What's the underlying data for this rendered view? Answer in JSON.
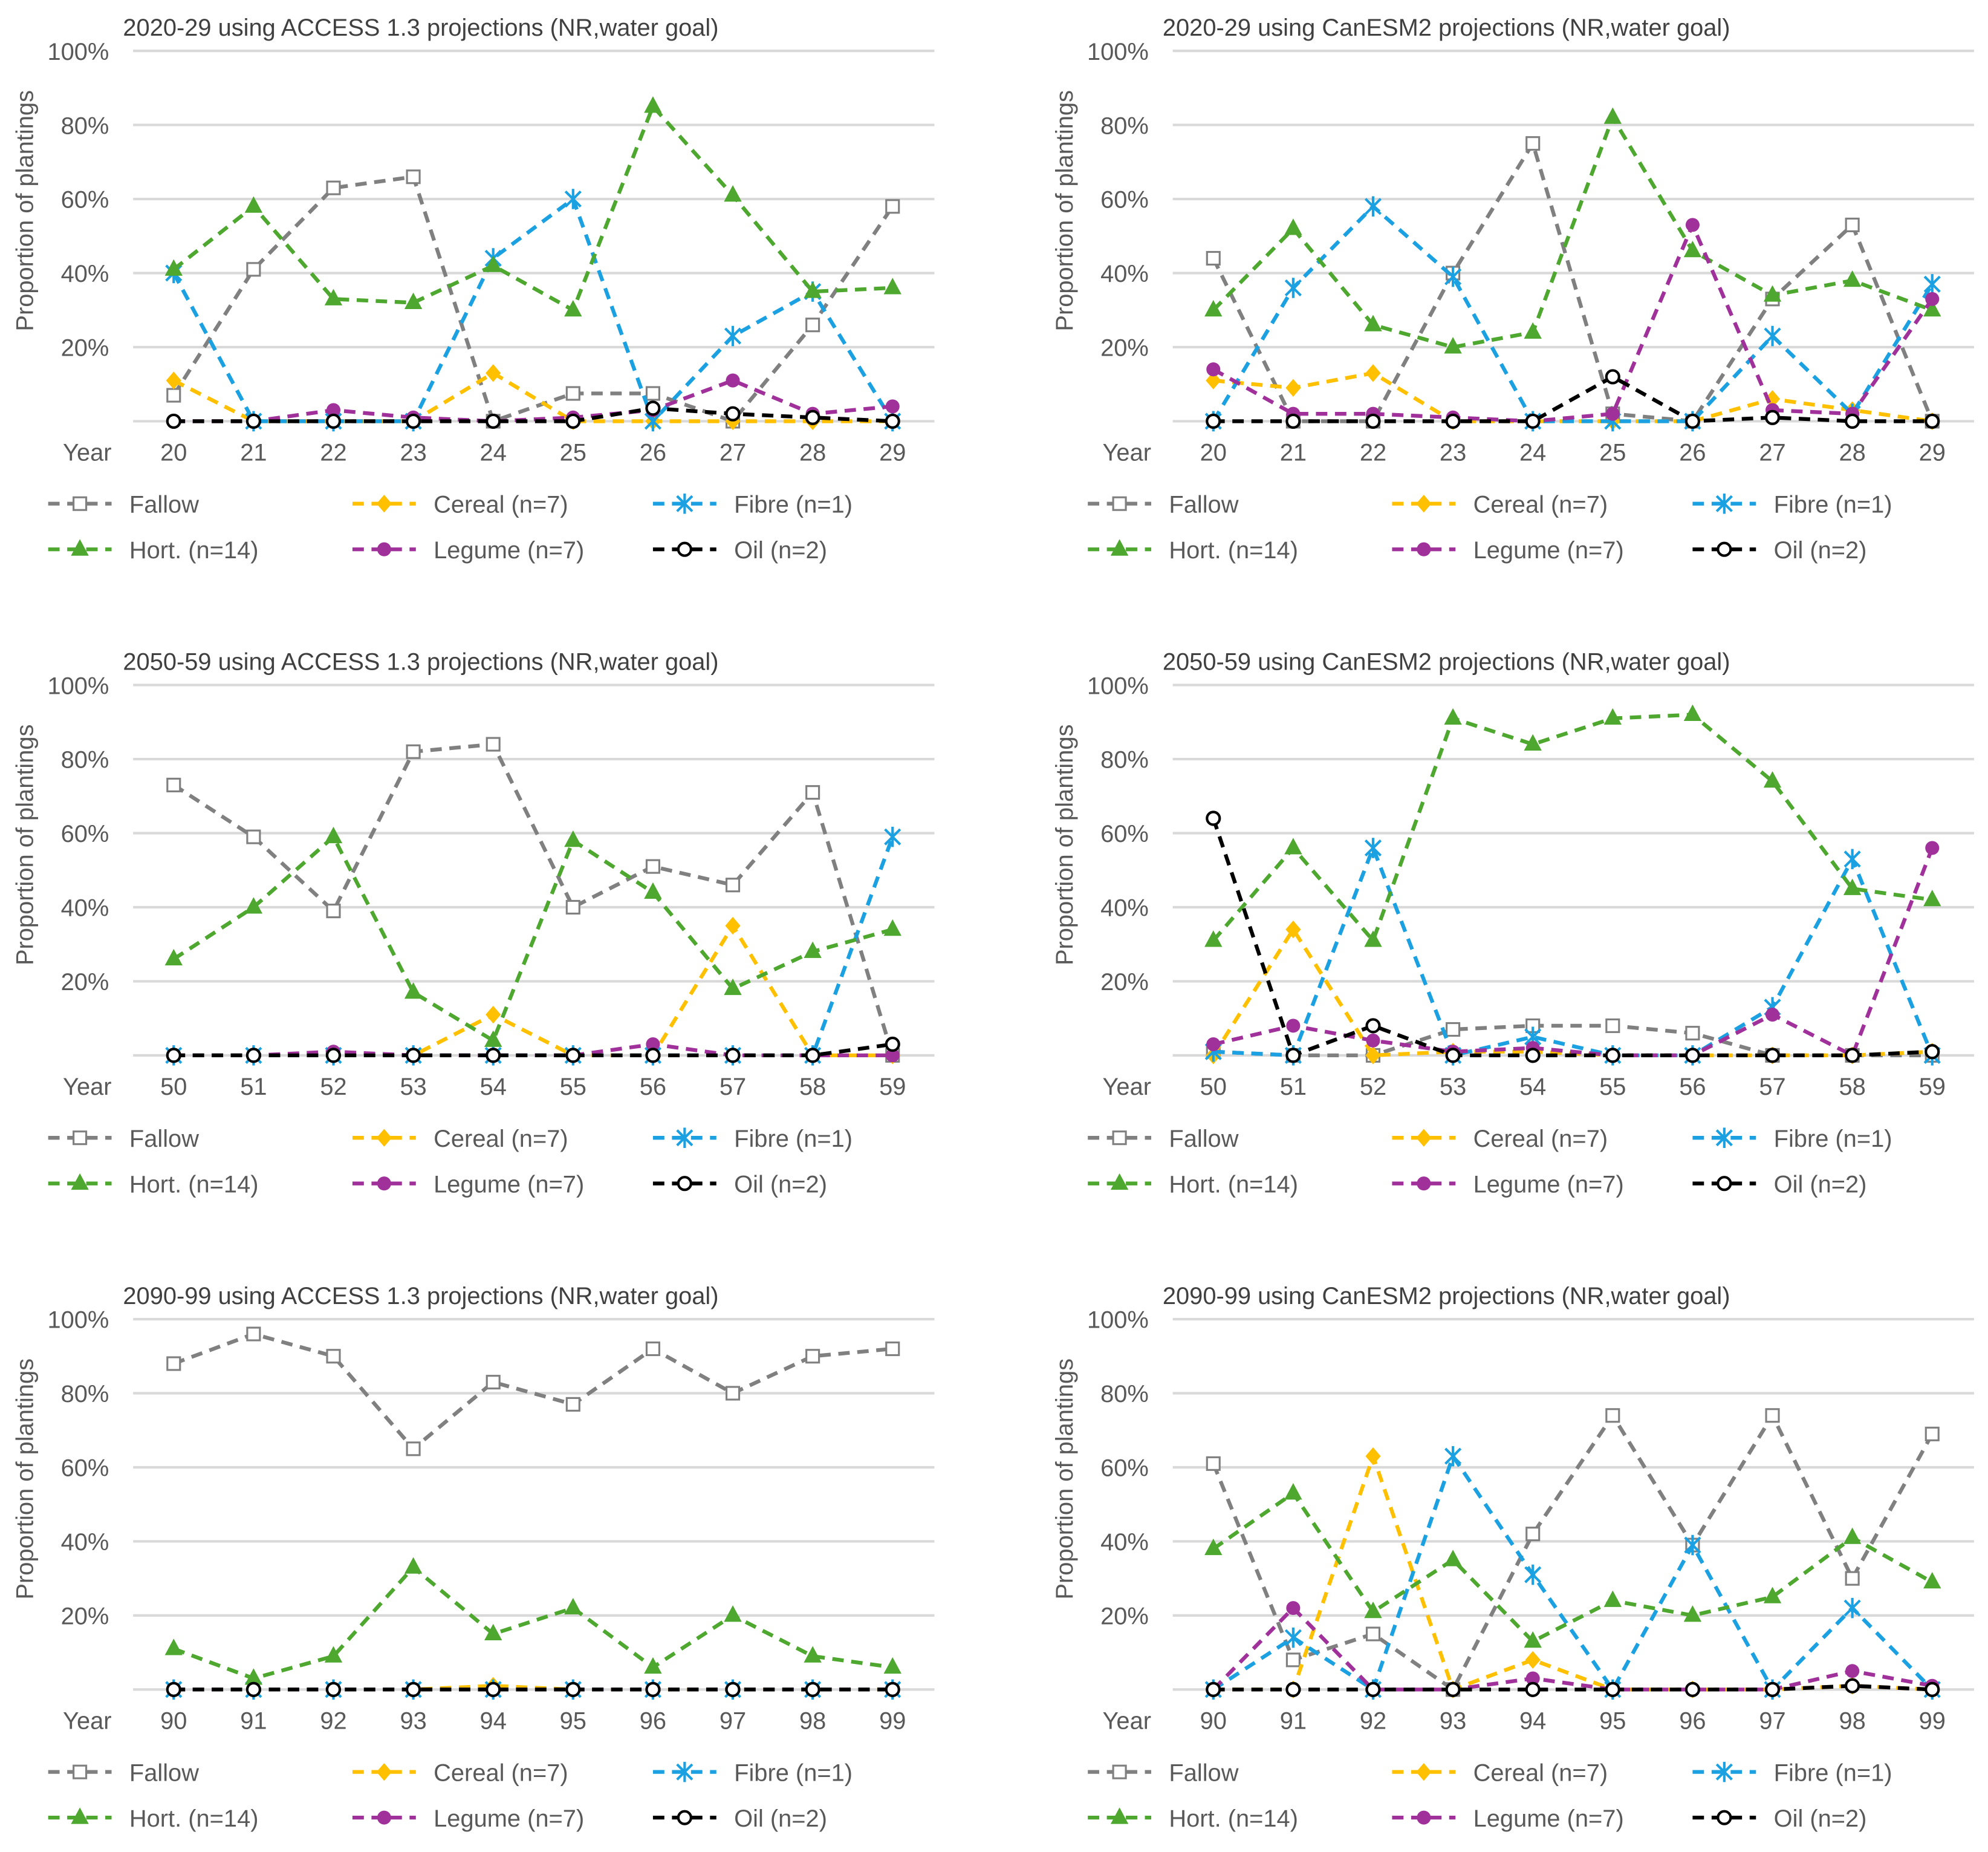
{
  "series_styles": [
    {
      "name": "Fallow",
      "color": "#808080",
      "marker": "open-square"
    },
    {
      "name": "Cereal (n=7)",
      "color": "#FFC000",
      "marker": "diamond"
    },
    {
      "name": "Fibre (n=1)",
      "color": "#1BA1E2",
      "marker": "asterisk"
    },
    {
      "name": "Hort. (n=14)",
      "color": "#4EA72E",
      "marker": "triangle"
    },
    {
      "name": "Legume (n=7)",
      "color": "#A0309A",
      "marker": "circle"
    },
    {
      "name": "Oil (n=2)",
      "color": "#000000",
      "marker": "open-circle"
    }
  ],
  "chart_data": [
    {
      "type": "line",
      "title": "2020-29 using ACCESS 1.3 projections (NR,water goal)",
      "xlabel": "Year",
      "ylabel": "Proportion of plantings",
      "yticks": [
        "20%",
        "40%",
        "60%",
        "80%",
        "100%"
      ],
      "ylim": [
        0,
        100
      ],
      "grid": true,
      "legend": "bottom",
      "categories": [
        "20",
        "21",
        "22",
        "23",
        "24",
        "25",
        "26",
        "27",
        "28",
        "29"
      ],
      "series": [
        {
          "name": "Fallow",
          "values": [
            7,
            41,
            63,
            66,
            0,
            7.5,
            7.5,
            0,
            26,
            58
          ]
        },
        {
          "name": "Cereal (n=7)",
          "values": [
            11,
            0,
            0,
            0,
            13,
            0,
            0,
            0,
            0,
            0
          ]
        },
        {
          "name": "Fibre (n=1)",
          "values": [
            40,
            0,
            0,
            0,
            44,
            60,
            0,
            23,
            35,
            0
          ]
        },
        {
          "name": "Hort. (n=14)",
          "values": [
            41,
            58,
            33,
            32,
            42,
            30,
            85,
            61,
            35,
            36
          ]
        },
        {
          "name": "Legume (n=7)",
          "values": [
            0,
            0,
            3,
            1,
            0,
            1,
            3,
            11,
            2,
            4
          ]
        },
        {
          "name": "Oil (n=2)",
          "values": [
            0,
            0,
            0,
            0,
            0,
            0,
            3.5,
            2,
            1,
            0
          ]
        }
      ]
    },
    {
      "type": "line",
      "title": "2020-29 using CanESM2 projections (NR,water goal)",
      "xlabel": "Year",
      "ylabel": "Proportion of plantings",
      "yticks": [
        "20%",
        "40%",
        "60%",
        "80%",
        "100%"
      ],
      "ylim": [
        0,
        100
      ],
      "grid": true,
      "legend": "bottom",
      "categories": [
        "20",
        "21",
        "22",
        "23",
        "24",
        "25",
        "26",
        "27",
        "28",
        "29"
      ],
      "series": [
        {
          "name": "Fallow",
          "values": [
            44,
            0,
            0,
            40,
            75,
            2,
            0,
            33,
            53,
            0
          ]
        },
        {
          "name": "Cereal (n=7)",
          "values": [
            11,
            9,
            13,
            0,
            0,
            0,
            0,
            6,
            3,
            0
          ]
        },
        {
          "name": "Fibre (n=1)",
          "values": [
            0,
            36,
            58,
            39,
            0,
            0,
            0,
            23,
            2,
            37
          ]
        },
        {
          "name": "Hort. (n=14)",
          "values": [
            30,
            52,
            26,
            20,
            24,
            82,
            46,
            34,
            38,
            30
          ]
        },
        {
          "name": "Legume (n=7)",
          "values": [
            14,
            2,
            2,
            1,
            0,
            2,
            53,
            3,
            2,
            33
          ]
        },
        {
          "name": "Oil (n=2)",
          "values": [
            0,
            0,
            0,
            0,
            0,
            12,
            0,
            1,
            0,
            0
          ]
        }
      ]
    },
    {
      "type": "line",
      "title": "2050-59 using ACCESS 1.3 projections (NR,water goal)",
      "xlabel": "Year",
      "ylabel": "Proportion of plantings",
      "yticks": [
        "20%",
        "40%",
        "60%",
        "80%",
        "100%"
      ],
      "ylim": [
        0,
        100
      ],
      "grid": true,
      "legend": "bottom",
      "categories": [
        "50",
        "51",
        "52",
        "53",
        "54",
        "55",
        "56",
        "57",
        "58",
        "59"
      ],
      "series": [
        {
          "name": "Fallow",
          "values": [
            73,
            59,
            39,
            82,
            84,
            40,
            51,
            46,
            71,
            0
          ]
        },
        {
          "name": "Cereal (n=7)",
          "values": [
            0,
            0,
            0,
            0,
            11,
            0,
            0,
            35,
            0,
            0
          ]
        },
        {
          "name": "Fibre (n=1)",
          "values": [
            0,
            0,
            0,
            0,
            0,
            0,
            0,
            0,
            0,
            59
          ]
        },
        {
          "name": "Hort. (n=14)",
          "values": [
            26,
            40,
            59,
            17,
            4,
            58,
            44,
            18,
            28,
            34
          ]
        },
        {
          "name": "Legume (n=7)",
          "values": [
            0,
            0,
            1,
            0,
            0,
            0,
            3,
            0,
            0,
            0
          ]
        },
        {
          "name": "Oil (n=2)",
          "values": [
            0,
            0,
            0,
            0,
            0,
            0,
            0,
            0,
            0,
            3
          ]
        }
      ]
    },
    {
      "type": "line",
      "title": "2050-59 using CanESM2 projections (NR,water goal)",
      "xlabel": "Year",
      "ylabel": "Proportion of plantings",
      "yticks": [
        "20%",
        "40%",
        "60%",
        "80%",
        "100%"
      ],
      "ylim": [
        0,
        100
      ],
      "grid": true,
      "legend": "bottom",
      "categories": [
        "50",
        "51",
        "52",
        "53",
        "54",
        "55",
        "56",
        "57",
        "58",
        "59"
      ],
      "series": [
        {
          "name": "Fallow",
          "values": [
            1,
            0,
            0,
            7,
            8,
            8,
            6,
            0,
            0,
            0
          ]
        },
        {
          "name": "Cereal (n=7)",
          "values": [
            0,
            34,
            0,
            1,
            1,
            0,
            0,
            0,
            0,
            1
          ]
        },
        {
          "name": "Fibre (n=1)",
          "values": [
            1,
            0,
            56,
            0,
            5,
            0,
            0,
            13,
            53,
            0
          ]
        },
        {
          "name": "Hort. (n=14)",
          "values": [
            31,
            56,
            31,
            91,
            84,
            91,
            92,
            74,
            45,
            42
          ]
        },
        {
          "name": "Legume (n=7)",
          "values": [
            3,
            8,
            4,
            1,
            2,
            0,
            0,
            11,
            0,
            56
          ]
        },
        {
          "name": "Oil (n=2)",
          "values": [
            64,
            0,
            8,
            0,
            0,
            0,
            0,
            0,
            0,
            1
          ]
        }
      ]
    },
    {
      "type": "line",
      "title": "2090-99 using ACCESS 1.3 projections (NR,water goal)",
      "xlabel": "Year",
      "ylabel": "Proportion of plantings",
      "yticks": [
        "20%",
        "40%",
        "60%",
        "80%",
        "100%"
      ],
      "ylim": [
        0,
        100
      ],
      "grid": true,
      "legend": "bottom",
      "categories": [
        "90",
        "91",
        "92",
        "93",
        "94",
        "95",
        "96",
        "97",
        "98",
        "99"
      ],
      "series": [
        {
          "name": "Fallow",
          "values": [
            88,
            96,
            90,
            65,
            83,
            77,
            92,
            80,
            90,
            92
          ]
        },
        {
          "name": "Cereal (n=7)",
          "values": [
            0,
            0,
            0,
            0,
            1,
            0,
            0,
            0,
            0,
            0
          ]
        },
        {
          "name": "Fibre (n=1)",
          "values": [
            0,
            0,
            0,
            0,
            0,
            0,
            0,
            0,
            0,
            0
          ]
        },
        {
          "name": "Hort. (n=14)",
          "values": [
            11,
            3,
            9,
            33,
            15,
            22,
            6,
            20,
            9,
            6
          ]
        },
        {
          "name": "Legume (n=7)",
          "values": [
            0,
            0,
            0,
            0,
            0,
            0,
            0,
            0,
            0,
            0
          ]
        },
        {
          "name": "Oil (n=2)",
          "values": [
            0,
            0,
            0,
            0,
            0,
            0,
            0,
            0,
            0,
            0
          ]
        }
      ]
    },
    {
      "type": "line",
      "title": "2090-99 using CanESM2 projections (NR,water goal)",
      "xlabel": "Year",
      "ylabel": "Proportion of plantings",
      "yticks": [
        "20%",
        "40%",
        "60%",
        "80%",
        "100%"
      ],
      "ylim": [
        0,
        100
      ],
      "grid": true,
      "legend": "bottom",
      "categories": [
        "90",
        "91",
        "92",
        "93",
        "94",
        "95",
        "96",
        "97",
        "98",
        "99"
      ],
      "series": [
        {
          "name": "Fallow",
          "values": [
            61,
            8,
            15,
            0,
            42,
            74,
            39,
            74,
            30,
            69
          ]
        },
        {
          "name": "Cereal (n=7)",
          "values": [
            0,
            0,
            63,
            0,
            8,
            0,
            0,
            0,
            1,
            0
          ]
        },
        {
          "name": "Fibre (n=1)",
          "values": [
            0,
            14,
            0,
            63,
            31,
            0,
            39,
            0,
            22,
            0
          ]
        },
        {
          "name": "Hort. (n=14)",
          "values": [
            38,
            53,
            21,
            35,
            13,
            24,
            20,
            25,
            41,
            29
          ]
        },
        {
          "name": "Legume (n=7)",
          "values": [
            0,
            22,
            0,
            0,
            3,
            0,
            0,
            0,
            5,
            1
          ]
        },
        {
          "name": "Oil (n=2)",
          "values": [
            0,
            0,
            0,
            0,
            0,
            0,
            0,
            0,
            1,
            0
          ]
        }
      ]
    }
  ]
}
